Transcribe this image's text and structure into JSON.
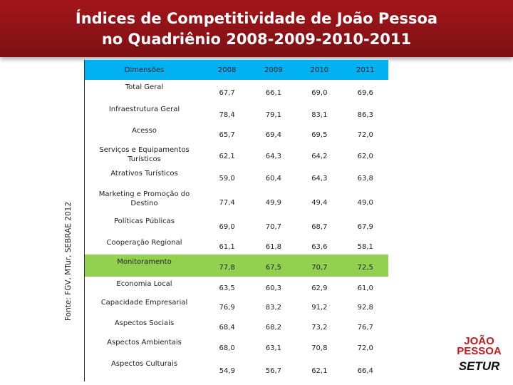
{
  "header": {
    "title_lines": [
      "Índices de Competitividade de João Pessoa",
      "no Quadriênio 2008-2009-2010-2011"
    ]
  },
  "source": "Fonte: FGV, MTur, SEBRAE 2012",
  "table": {
    "header": [
      "Dimensões",
      "2008",
      "2009",
      "2010",
      "2011"
    ],
    "rows": [
      [
        "Total Geral",
        "67,7",
        "66,1",
        "69,0",
        "69,6"
      ],
      [
        "Infraestrutura Geral",
        "78,4",
        "79,1",
        "83,1",
        "86,3"
      ],
      [
        "Acesso",
        "65,7",
        "69,4",
        "69,5",
        "72,0"
      ],
      [
        "Serviços e Equipamentos Turísticos",
        "62,1",
        "64,3",
        "64,2",
        "62,0"
      ],
      [
        "Atrativos Turísticos",
        "59,0",
        "60,4",
        "64,3",
        "63,8"
      ],
      [
        "Marketing e Promoção do Destino",
        "77,4",
        "49,9",
        "49,4",
        "49,0"
      ],
      [
        "Políticas Públicas",
        "69,0",
        "70,7",
        "68,7",
        "67,9"
      ],
      [
        "Cooperação Regional",
        "61,1",
        "61,8",
        "63,6",
        "58,1"
      ],
      [
        "Monitoramento",
        "77,8",
        "67,5",
        "70,7",
        "72,5"
      ],
      [
        "Economia Local",
        "63,5",
        "60,3",
        "62,9",
        "61,0"
      ],
      [
        "Capacidade Empresarial",
        "76,9",
        "83,2",
        "91,2",
        "92,8"
      ],
      [
        "Aspectos Sociais",
        "68,4",
        "68,2",
        "73,2",
        "76,7"
      ],
      [
        "Aspectos Ambientais",
        "68,0",
        "63,1",
        "70,8",
        "72,0"
      ],
      [
        "Aspectos Culturais",
        "54,9",
        "56,7",
        "62,1",
        "66,4"
      ]
    ]
  },
  "logo": {
    "line1": "JOÃO",
    "line2": "PESSOA",
    "line3": "SETUR"
  }
}
